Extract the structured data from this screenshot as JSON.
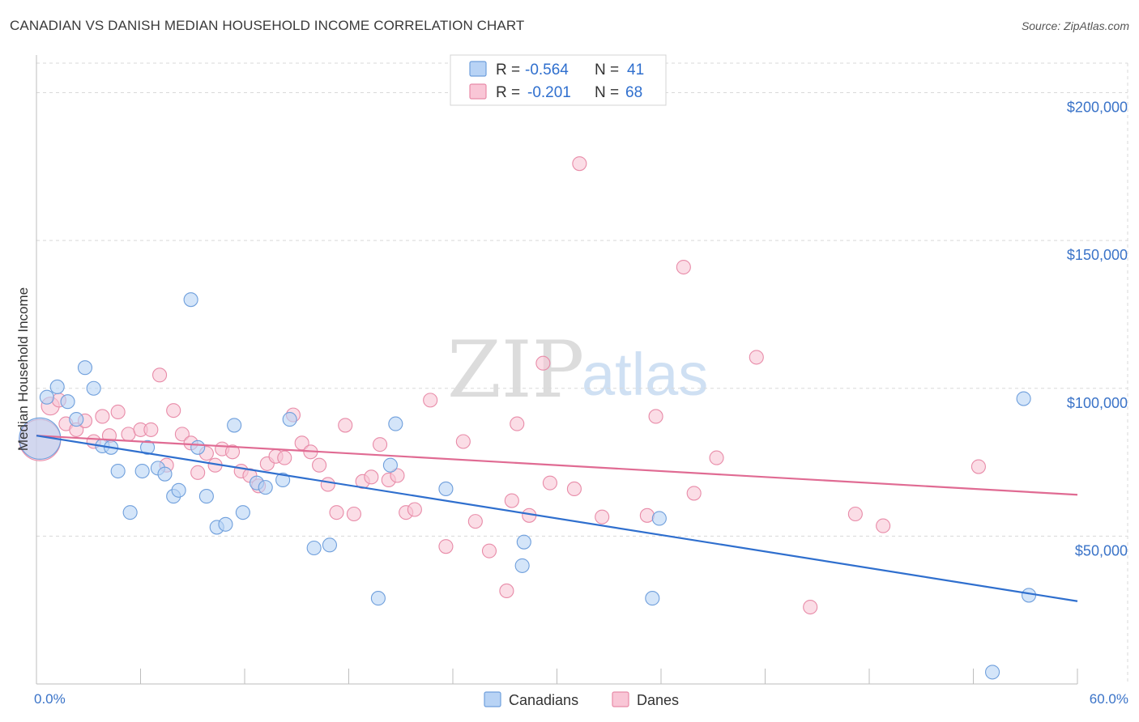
{
  "title": "CANADIAN VS DANISH MEDIAN HOUSEHOLD INCOME CORRELATION CHART",
  "source": "Source: ZipAtlas.com",
  "watermark": {
    "zip": "ZIP",
    "atlas": "atlas"
  },
  "colors": {
    "canadians_fill": "#b8d3f5",
    "canadians_stroke": "#6f9fdc",
    "canadians_line": "#2f6fce",
    "danes_fill": "#f9c6d6",
    "danes_stroke": "#e88ba8",
    "danes_line": "#e06b93",
    "grid": "#d9d9d9",
    "axis_text": "#3a73c8"
  },
  "legend": {
    "rows": [
      {
        "r_label": "R = ",
        "r_value": "-0.564",
        "n_label": "N = ",
        "n_value": "41"
      },
      {
        "r_label": "R = ",
        "r_value": "-0.201",
        "n_label": "N = ",
        "n_value": "68"
      }
    ]
  },
  "bottom_legend": [
    "Canadians",
    "Danes"
  ],
  "chart_data": {
    "type": "scatter",
    "xlabel": "",
    "ylabel": "Median Household Income",
    "xlim": [
      0,
      60
    ],
    "ylim": [
      0,
      210000
    ],
    "x_tick_labels": [
      "0.0%",
      "60.0%"
    ],
    "y_ticks": [
      {
        "value": 50000,
        "label": "$50,000"
      },
      {
        "value": 100000,
        "label": "$100,000"
      },
      {
        "value": 150000,
        "label": "$150,000"
      },
      {
        "value": 200000,
        "label": "$200,000"
      }
    ],
    "grid": true,
    "legend_position": "top-center",
    "series": [
      {
        "name": "Canadians",
        "r": -0.564,
        "n": 41,
        "trend": {
          "x": [
            0,
            60
          ],
          "y": [
            84000,
            28000
          ]
        },
        "points": [
          [
            0.2,
            83000,
            3
          ],
          [
            0.6,
            97000,
            1
          ],
          [
            1.2,
            100500,
            1
          ],
          [
            1.8,
            95500,
            1
          ],
          [
            2.3,
            89500,
            1
          ],
          [
            2.8,
            107000,
            1
          ],
          [
            3.3,
            100000,
            1
          ],
          [
            3.8,
            80500,
            1
          ],
          [
            4.3,
            80000,
            1
          ],
          [
            4.7,
            72000,
            1
          ],
          [
            5.4,
            58000,
            1
          ],
          [
            6.1,
            72000,
            1
          ],
          [
            6.4,
            80000,
            1
          ],
          [
            7.0,
            73000,
            1
          ],
          [
            7.4,
            71000,
            1
          ],
          [
            7.9,
            63500,
            1
          ],
          [
            8.2,
            65500,
            1
          ],
          [
            8.9,
            130000,
            1
          ],
          [
            9.3,
            80000,
            1
          ],
          [
            9.8,
            63500,
            1
          ],
          [
            10.4,
            53000,
            1
          ],
          [
            10.9,
            54000,
            1
          ],
          [
            11.4,
            87500,
            1
          ],
          [
            11.9,
            58000,
            1
          ],
          [
            12.7,
            68000,
            1
          ],
          [
            13.2,
            66500,
            1
          ],
          [
            14.2,
            69000,
            1
          ],
          [
            14.6,
            89500,
            1
          ],
          [
            16.0,
            46000,
            1
          ],
          [
            16.9,
            47000,
            1
          ],
          [
            19.7,
            29000,
            1
          ],
          [
            20.4,
            74000,
            1
          ],
          [
            20.7,
            88000,
            1
          ],
          [
            23.6,
            66000,
            1
          ],
          [
            28.0,
            40000,
            1
          ],
          [
            28.1,
            48000,
            1
          ],
          [
            35.5,
            29000,
            1
          ],
          [
            35.9,
            56000,
            1
          ],
          [
            56.9,
            96500,
            1
          ],
          [
            57.2,
            30000,
            1
          ],
          [
            55.1,
            4000,
            1
          ]
        ]
      },
      {
        "name": "Danes",
        "r": -0.201,
        "n": 68,
        "trend": {
          "x": [
            0,
            60
          ],
          "y": [
            84000,
            64000
          ]
        },
        "points": [
          [
            0.2,
            82500,
            3
          ],
          [
            0.8,
            94000,
            1.3
          ],
          [
            1.3,
            96000,
            1
          ],
          [
            1.7,
            88000,
            1
          ],
          [
            2.3,
            86000,
            1
          ],
          [
            2.8,
            89000,
            1
          ],
          [
            3.3,
            82000,
            1
          ],
          [
            3.8,
            90500,
            1
          ],
          [
            4.2,
            84000,
            1
          ],
          [
            4.7,
            92000,
            1
          ],
          [
            5.3,
            84500,
            1
          ],
          [
            6.0,
            86000,
            1
          ],
          [
            6.6,
            86000,
            1
          ],
          [
            7.1,
            104500,
            1
          ],
          [
            7.5,
            74000,
            1
          ],
          [
            7.9,
            92500,
            1
          ],
          [
            8.4,
            84500,
            1
          ],
          [
            8.9,
            81500,
            1
          ],
          [
            9.3,
            71500,
            1
          ],
          [
            9.8,
            78000,
            1
          ],
          [
            10.3,
            74000,
            1
          ],
          [
            10.7,
            79500,
            1
          ],
          [
            11.3,
            78500,
            1
          ],
          [
            11.8,
            72000,
            1
          ],
          [
            12.3,
            70500,
            1
          ],
          [
            12.8,
            67000,
            1
          ],
          [
            13.3,
            74500,
            1
          ],
          [
            13.8,
            77000,
            1
          ],
          [
            14.3,
            76500,
            1
          ],
          [
            14.8,
            91000,
            1
          ],
          [
            15.3,
            81500,
            1
          ],
          [
            15.8,
            78500,
            1
          ],
          [
            16.3,
            74000,
            1
          ],
          [
            16.8,
            67500,
            1
          ],
          [
            17.3,
            58000,
            1
          ],
          [
            17.8,
            87500,
            1
          ],
          [
            18.3,
            57500,
            1
          ],
          [
            18.8,
            68500,
            1
          ],
          [
            19.3,
            70000,
            1
          ],
          [
            19.8,
            81000,
            1
          ],
          [
            20.3,
            69000,
            1
          ],
          [
            20.8,
            70500,
            1
          ],
          [
            21.3,
            58000,
            1
          ],
          [
            21.8,
            59000,
            1
          ],
          [
            22.7,
            96000,
            1
          ],
          [
            23.6,
            46500,
            1
          ],
          [
            24.6,
            82000,
            1
          ],
          [
            25.3,
            55000,
            1
          ],
          [
            26.1,
            45000,
            1
          ],
          [
            27.1,
            31500,
            1
          ],
          [
            27.4,
            62000,
            1
          ],
          [
            27.7,
            88000,
            1
          ],
          [
            28.4,
            57000,
            1
          ],
          [
            29.2,
            108500,
            1
          ],
          [
            29.6,
            68000,
            1
          ],
          [
            31.0,
            66000,
            1
          ],
          [
            31.3,
            176000,
            1
          ],
          [
            32.6,
            56500,
            1
          ],
          [
            35.2,
            57000,
            1
          ],
          [
            35.7,
            90500,
            1
          ],
          [
            37.3,
            141000,
            1
          ],
          [
            37.9,
            64500,
            1
          ],
          [
            39.2,
            76500,
            1
          ],
          [
            41.5,
            110500,
            1
          ],
          [
            44.6,
            26000,
            1
          ],
          [
            47.2,
            57500,
            1
          ],
          [
            48.8,
            53500,
            1
          ],
          [
            54.3,
            73500,
            1
          ]
        ]
      }
    ]
  }
}
